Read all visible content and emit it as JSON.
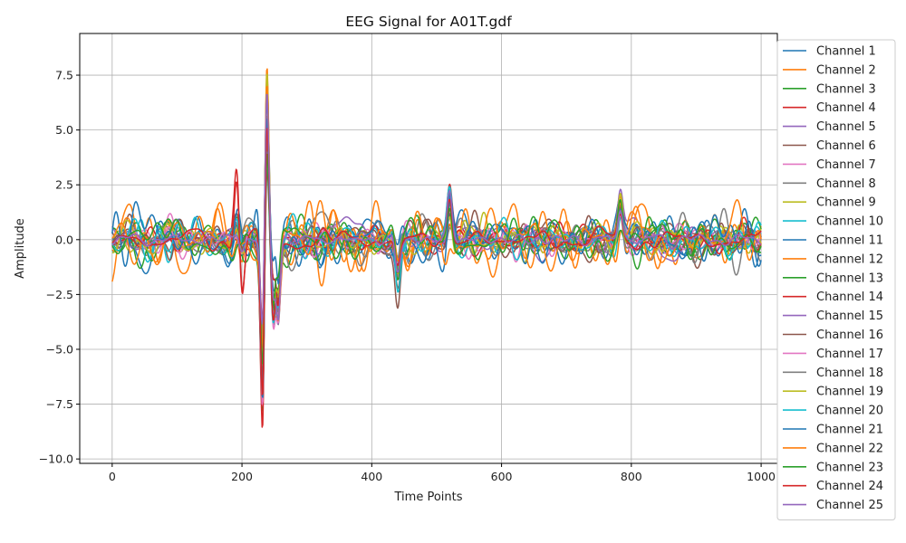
{
  "chart_data": {
    "type": "line",
    "title": "EEG Signal for A01T.gdf",
    "xlabel": "Time Points",
    "ylabel": "Amplitude",
    "xlim": [
      -50,
      1025
    ],
    "ylim": [
      -10.2,
      9.4
    ],
    "xticks": [
      0,
      200,
      400,
      600,
      800,
      1000
    ],
    "xtick_labels": [
      "0",
      "200",
      "400",
      "600",
      "800",
      "1000"
    ],
    "yticks": [
      -10.0,
      -7.5,
      -5.0,
      -2.5,
      0.0,
      2.5,
      5.0,
      7.5
    ],
    "ytick_labels": [
      "−10.0",
      "−7.5",
      "−5.0",
      "−2.5",
      "0.0",
      "2.5",
      "5.0",
      "7.5"
    ],
    "grid": true,
    "legend_position": "right",
    "sample_points": 1000,
    "series": [
      {
        "name": "Channel 1",
        "color": "#1f77b4",
        "scale": 1.0
      },
      {
        "name": "Channel 2",
        "color": "#ff7f0e",
        "scale": 1.2
      },
      {
        "name": "Channel 3",
        "color": "#2ca02c",
        "scale": 0.8
      },
      {
        "name": "Channel 4",
        "color": "#d62728",
        "scale": 0.45
      },
      {
        "name": "Channel 5",
        "color": "#9467bd",
        "scale": 0.7
      },
      {
        "name": "Channel 6",
        "color": "#8c564b",
        "scale": 0.7
      },
      {
        "name": "Channel 7",
        "color": "#e377c2",
        "scale": 0.6
      },
      {
        "name": "Channel 8",
        "color": "#7f7f7f",
        "scale": 0.8
      },
      {
        "name": "Channel 9",
        "color": "#bcbd22",
        "scale": 0.7
      },
      {
        "name": "Channel 10",
        "color": "#17becf",
        "scale": 0.8
      },
      {
        "name": "Channel 11",
        "color": "#1f77b4",
        "scale": 0.9
      },
      {
        "name": "Channel 12",
        "color": "#ff7f0e",
        "scale": 1.0
      },
      {
        "name": "Channel 13",
        "color": "#2ca02c",
        "scale": 0.8
      },
      {
        "name": "Channel 14",
        "color": "#d62728",
        "scale": 0.5
      },
      {
        "name": "Channel 15",
        "color": "#9467bd",
        "scale": 0.5
      },
      {
        "name": "Channel 16",
        "color": "#8c564b",
        "scale": 0.7
      },
      {
        "name": "Channel 17",
        "color": "#e377c2",
        "scale": 0.5
      },
      {
        "name": "Channel 18",
        "color": "#7f7f7f",
        "scale": 0.8
      },
      {
        "name": "Channel 19",
        "color": "#bcbd22",
        "scale": 0.6
      },
      {
        "name": "Channel 20",
        "color": "#17becf",
        "scale": 0.7
      },
      {
        "name": "Channel 21",
        "color": "#1f77b4",
        "scale": 0.9
      },
      {
        "name": "Channel 22",
        "color": "#ff7f0e",
        "scale": 1.1
      },
      {
        "name": "Channel 23",
        "color": "#2ca02c",
        "scale": 0.7
      },
      {
        "name": "Channel 24",
        "color": "#d62728",
        "scale": 0.4
      },
      {
        "name": "Channel 25",
        "color": "#9467bd",
        "scale": 0.25
      }
    ],
    "events": [
      {
        "t": 192,
        "value": 3.3
      },
      {
        "t": 200,
        "value": -2.7
      },
      {
        "t": 232,
        "value": -9.0
      },
      {
        "t": 238,
        "value": 8.5
      },
      {
        "t": 248,
        "value": -3.8
      },
      {
        "t": 256,
        "value": -3.7
      },
      {
        "t": 440,
        "value": -2.1
      },
      {
        "t": 520,
        "value": 2.2
      },
      {
        "t": 783,
        "value": 1.8
      }
    ]
  }
}
